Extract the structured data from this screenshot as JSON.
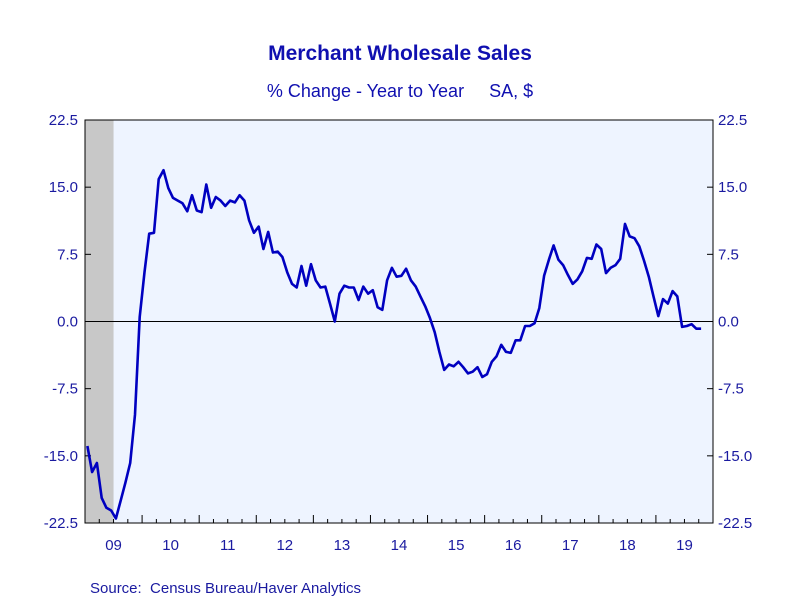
{
  "chart_data": {
    "type": "line",
    "title": "Merchant Wholesale Sales",
    "subtitle": "% Change - Year to Year     SA, $",
    "source": "Source:  Census Bureau/Haver Analytics",
    "xlabel": "",
    "ylabel": "",
    "ylim": [
      -22.5,
      22.5
    ],
    "yticks": [
      "22.5",
      "15.0",
      "7.5",
      "0.0",
      "-7.5",
      "-15.0",
      "-22.5"
    ],
    "yticks_right": [
      "22.5",
      "15.0",
      "7.5",
      "0.0",
      "-7.5",
      "-15.0",
      "-22.5"
    ],
    "ytick_values": [
      22.5,
      15.0,
      7.5,
      0.0,
      -7.5,
      -15.0,
      -22.5
    ],
    "xlim": [
      "2009-01",
      "2019-12"
    ],
    "xtick_labels": [
      "09",
      "10",
      "11",
      "12",
      "13",
      "14",
      "15",
      "16",
      "17",
      "18",
      "19"
    ],
    "grid": false,
    "zero_line": true,
    "recession_shading": {
      "start": "2009-01",
      "end": "2009-06"
    },
    "colors": {
      "line": "#0000c0",
      "plot_background": "#eef4ff",
      "recession": "#c8c8c8",
      "axis": "#000000",
      "text": "#1a1aa0",
      "title": "#1010b0"
    },
    "series": [
      {
        "start": "2009-01",
        "values": [
          -13.9,
          -16.8,
          -15.8,
          -19.7,
          -20.8,
          -21.1,
          -22.0,
          -20.0,
          -18.0,
          -15.8,
          -10.4,
          0.5,
          5.5,
          9.8,
          9.9,
          15.9,
          16.9,
          14.9,
          13.8,
          13.5,
          13.2,
          12.3,
          14.1,
          12.4,
          12.2,
          15.3,
          12.7,
          13.9,
          13.5,
          12.9,
          13.5,
          13.3,
          14.1,
          13.5,
          11.3,
          9.9,
          10.6,
          8.1,
          10.0,
          7.7,
          7.8,
          7.2,
          5.5,
          4.2,
          3.8,
          6.2,
          4.0,
          6.4,
          4.6,
          3.8,
          3.9,
          2.0,
          0.0,
          3.1,
          4.0,
          3.8,
          3.8,
          2.4,
          3.9,
          3.1,
          3.5,
          1.6,
          1.3,
          4.6,
          6.0,
          5.0,
          5.1,
          5.9,
          4.6,
          3.9,
          2.8,
          1.7,
          0.4,
          -1.2,
          -3.4,
          -5.4,
          -4.8,
          -5.0,
          -4.5,
          -5.1,
          -5.8,
          -5.6,
          -5.1,
          -6.2,
          -5.9,
          -4.5,
          -3.9,
          -2.6,
          -3.4,
          -3.5,
          -2.1,
          -2.1,
          -0.5,
          -0.5,
          -0.2,
          1.5,
          5.1,
          6.9,
          8.5,
          6.9,
          6.3,
          5.2,
          4.2,
          4.7,
          5.6,
          7.1,
          7.0,
          8.6,
          8.1,
          5.4,
          6.0,
          6.3,
          7.0,
          10.9,
          9.5,
          9.3,
          8.4,
          6.8,
          5.0,
          2.8,
          0.6,
          2.5,
          2.0,
          3.4,
          2.8,
          -0.6,
          -0.5,
          -0.3,
          -0.8,
          -0.8
        ]
      }
    ]
  }
}
